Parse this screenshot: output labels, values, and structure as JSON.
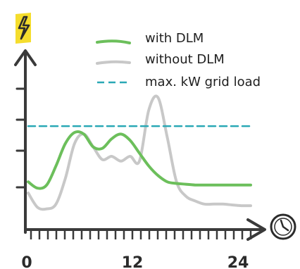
{
  "chart_data": {
    "type": "line",
    "title": "",
    "xlabel": "",
    "ylabel": "",
    "xlim": [
      0,
      24
    ],
    "ylim": [
      0,
      10
    ],
    "x_ticks": [
      "0",
      "12",
      "24"
    ],
    "grid": false,
    "legend_position": "top-right",
    "icons": {
      "y_axis": "lightning-bolt-icon",
      "x_axis": "clock-icon"
    },
    "colors": {
      "with_dlm": "#6cbf5b",
      "without_dlm": "#c8c8c8",
      "max_load": "#2aa8b5",
      "axis": "#3a3a3a",
      "bolt": "#f5dd2d"
    },
    "series": [
      {
        "name": "with DLM",
        "style": "solid",
        "x": [
          0,
          1,
          2,
          3,
          4,
          5,
          6,
          7,
          8,
          9,
          10,
          11,
          12,
          13,
          14,
          15,
          16,
          17,
          18,
          19,
          20,
          21,
          22,
          23,
          24
        ],
        "y": [
          3.0,
          2.6,
          2.8,
          4.0,
          5.4,
          6.1,
          6.0,
          5.2,
          5.1,
          5.7,
          6.0,
          5.6,
          4.8,
          4.0,
          3.4,
          3.0,
          2.9,
          2.85,
          2.8,
          2.8,
          2.8,
          2.8,
          2.8,
          2.8,
          2.8
        ]
      },
      {
        "name": "without DLM",
        "style": "solid",
        "x": [
          0,
          1,
          2,
          3,
          4,
          5,
          6,
          7,
          8,
          9,
          10,
          11,
          12,
          13,
          14,
          15,
          16,
          17,
          18,
          19,
          20,
          21,
          22,
          23,
          24
        ],
        "y": [
          2.3,
          1.4,
          1.3,
          1.6,
          3.2,
          5.4,
          6.0,
          5.2,
          4.4,
          4.6,
          4.3,
          4.6,
          4.3,
          7.5,
          8.3,
          5.8,
          3.0,
          2.1,
          1.8,
          1.6,
          1.6,
          1.6,
          1.55,
          1.5,
          1.5
        ]
      },
      {
        "name": "max. kW grid load",
        "style": "dashed",
        "x": [
          0,
          24
        ],
        "y": [
          6.5,
          6.5
        ]
      }
    ]
  }
}
